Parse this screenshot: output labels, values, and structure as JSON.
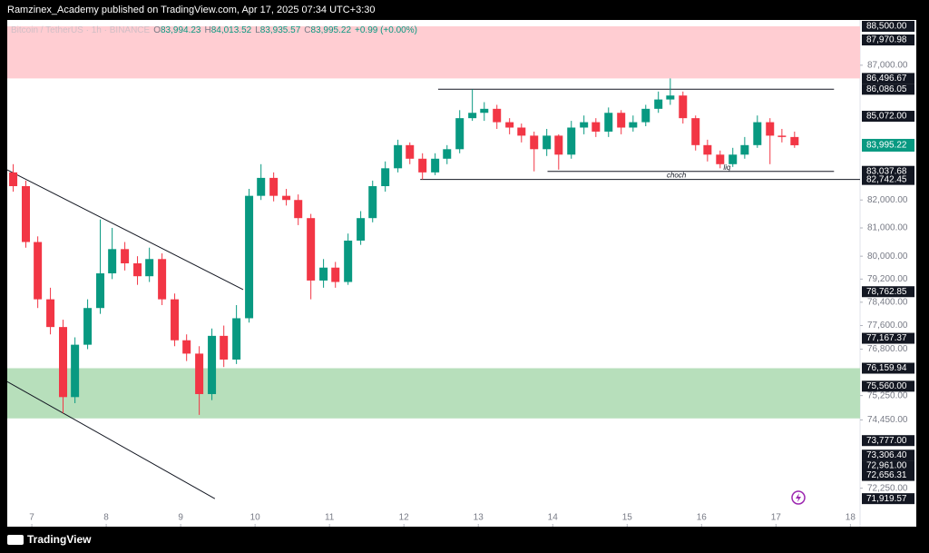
{
  "header": {
    "text": "Ramzinex_Academy published on TradingView.com, Apr 17, 2025 07:34 UTC+3:30"
  },
  "footer": {
    "brand": "TradingView"
  },
  "chart_data": {
    "type": "candlestick",
    "legend": {
      "symbol": "Bitcoin / TetherUS · 1h · BINANCE",
      "items": [
        {
          "key": "O",
          "value": "83,994.23"
        },
        {
          "key": "H",
          "value": "84,013.52"
        },
        {
          "key": "L",
          "value": "83,935.57"
        },
        {
          "key": "C",
          "value": "83,995.22"
        }
      ],
      "change": "+0.99 (+0.00%)"
    },
    "x": [
      6.75,
      6.92,
      7.08,
      7.25,
      7.42,
      7.58,
      7.75,
      7.92,
      8.08,
      8.25,
      8.42,
      8.58,
      8.75,
      8.92,
      9.08,
      9.25,
      9.42,
      9.58,
      9.75,
      9.92,
      10.08,
      10.25,
      10.42,
      10.58,
      10.75,
      10.92,
      11.08,
      11.25,
      11.42,
      11.58,
      11.75,
      11.92,
      12.08,
      12.25,
      12.42,
      12.58,
      12.75,
      12.92,
      13.08,
      13.25,
      13.42,
      13.58,
      13.75,
      13.92,
      14.08,
      14.25,
      14.42,
      14.58,
      14.75,
      14.92,
      15.08,
      15.25,
      15.42,
      15.58,
      15.75,
      15.92,
      16.08,
      16.25,
      16.42,
      16.58,
      16.75,
      16.92,
      17.08,
      17.25
    ],
    "open": [
      83000,
      82500,
      80500,
      78500,
      77550,
      75200,
      76950,
      78200,
      79400,
      80250,
      79750,
      79300,
      79900,
      78500,
      77100,
      76650,
      75300,
      77250,
      76450,
      77850,
      82150,
      82800,
      82150,
      82000,
      81350,
      79150,
      79600,
      79100,
      80550,
      81350,
      82500,
      83150,
      84000,
      83500,
      83000,
      83500,
      83850,
      85000,
      85200,
      85350,
      84850,
      84650,
      84350,
      83850,
      84350,
      83650,
      84650,
      84850,
      84500,
      85200,
      84650,
      84850,
      85350,
      85700,
      85850,
      85000,
      84000,
      83650,
      83300,
      83650,
      84000,
      84850,
      84350,
      84300
    ],
    "high": [
      83300,
      82700,
      80700,
      78900,
      77800,
      77200,
      78500,
      81300,
      81000,
      80500,
      80000,
      80300,
      80100,
      78700,
      77300,
      76900,
      77500,
      77600,
      78300,
      82400,
      83300,
      83000,
      82400,
      82200,
      81500,
      79900,
      79800,
      80800,
      81600,
      82700,
      83400,
      84200,
      84100,
      83700,
      83700,
      84000,
      85300,
      86086.05,
      85600,
      85500,
      85000,
      84800,
      84500,
      84600,
      84400,
      84900,
      85100,
      85000,
      85400,
      85300,
      85100,
      85500,
      86000,
      86496.67,
      86000,
      85100,
      84200,
      83800,
      83900,
      84300,
      85100,
      85000,
      84600,
      84500
    ],
    "low": [
      82300,
      80300,
      78200,
      77300,
      74674,
      75000,
      76800,
      78000,
      79200,
      79500,
      79000,
      79100,
      78300,
      76900,
      76400,
      74615,
      75100,
      76200,
      76300,
      77700,
      82000,
      81950,
      81800,
      81100,
      78500,
      78900,
      78900,
      79000,
      80400,
      81200,
      82300,
      83000,
      83300,
      82742.45,
      82900,
      83300,
      83700,
      84900,
      84900,
      84600,
      84400,
      84100,
      83037.68,
      83600,
      83100,
      83500,
      84400,
      84300,
      84300,
      84400,
      84500,
      84700,
      85200,
      85500,
      84800,
      83800,
      83400,
      83150,
      83200,
      83500,
      83900,
      83300,
      84100,
      83900
    ],
    "close": [
      82500,
      80500,
      78500,
      77550,
      75200,
      76950,
      78200,
      79400,
      80250,
      79750,
      79300,
      79900,
      78500,
      77100,
      76650,
      75300,
      77250,
      76450,
      77850,
      82150,
      82800,
      82150,
      82000,
      81350,
      79150,
      79600,
      79100,
      80550,
      81350,
      82500,
      83150,
      84000,
      83500,
      83000,
      83500,
      83850,
      85000,
      85200,
      85350,
      84850,
      84650,
      84350,
      83850,
      84350,
      83650,
      84650,
      84850,
      84500,
      85200,
      84650,
      84850,
      85350,
      85700,
      85850,
      85000,
      84000,
      83650,
      83300,
      83650,
      84000,
      84850,
      84350,
      84300,
      83995.22
    ],
    "up_color": "#089981",
    "down_color": "#f23645",
    "xlim": [
      6.67,
      18.13
    ],
    "xticks": [
      7,
      8,
      9,
      10,
      11,
      12,
      13,
      14,
      15,
      16,
      17,
      18
    ],
    "ylim": [
      71040,
      88640
    ],
    "log_scale": true,
    "yticks": [
      {
        "value": 87000,
        "label": "87,000.00"
      },
      {
        "value": 82000,
        "label": "82,000.00"
      },
      {
        "value": 81000,
        "label": "81,000.00"
      },
      {
        "value": 80000,
        "label": "80,000.00"
      },
      {
        "value": 79200,
        "label": "79,200.00"
      },
      {
        "value": 78400,
        "label": "78,400.00"
      },
      {
        "value": 77600,
        "label": "77,600.00"
      },
      {
        "value": 76800,
        "label": "76,800.00"
      },
      {
        "value": 75250,
        "label": "75,250.00"
      },
      {
        "value": 74450,
        "label": "74,450.00"
      },
      {
        "value": 72250,
        "label": "72,250.00"
      }
    ],
    "price_labels": [
      {
        "value": 88500,
        "label": "88,500.00"
      },
      {
        "value": 87970.98,
        "label": "87,970.98"
      },
      {
        "value": 86496.67,
        "label": "86,496.67"
      },
      {
        "value": 86086.05,
        "label": "86,086.05"
      },
      {
        "value": 85072,
        "label": "85,072.00"
      },
      {
        "value": 83037.68,
        "label": "83,037.68"
      },
      {
        "value": 82742.45,
        "label": "82,742.45"
      },
      {
        "value": 78762.85,
        "label": "78,762.85"
      },
      {
        "value": 77167.37,
        "label": "77,167.37"
      },
      {
        "value": 76159.94,
        "label": "76,159.94"
      },
      {
        "value": 75560,
        "label": "75,560.00"
      },
      {
        "value": 73777,
        "label": "73,777.00"
      },
      {
        "value": 73306.4,
        "label": "73,306.40"
      },
      {
        "value": 72961,
        "label": "72,961.00"
      },
      {
        "value": 72656.31,
        "label": "72,656.31"
      },
      {
        "value": 71919.57,
        "label": "71,919.57"
      }
    ],
    "last_price": {
      "value": 83995.22,
      "label": "83,995.22",
      "color": "#089981"
    },
    "zones": [
      {
        "from": 88500,
        "to": 86496.67,
        "color": "#ffcdd2"
      },
      {
        "from": 76159.94,
        "to": 74500,
        "color": "#b7dfbb"
      }
    ],
    "levels": [
      {
        "value": 86086.05,
        "from": 12.46,
        "to": 17.78
      },
      {
        "value": 83037.68,
        "from": 13.93,
        "to": 17.78,
        "label": "liq"
      },
      {
        "value": 82742.45,
        "from": 12.22,
        "to": 18.13,
        "label": "choch"
      }
    ],
    "trendlines": [
      [
        [
          6.67,
          83093
        ],
        [
          9.84,
          78836
        ]
      ],
      [
        [
          6.67,
          75713
        ],
        [
          9.46,
          71920
        ]
      ]
    ]
  }
}
